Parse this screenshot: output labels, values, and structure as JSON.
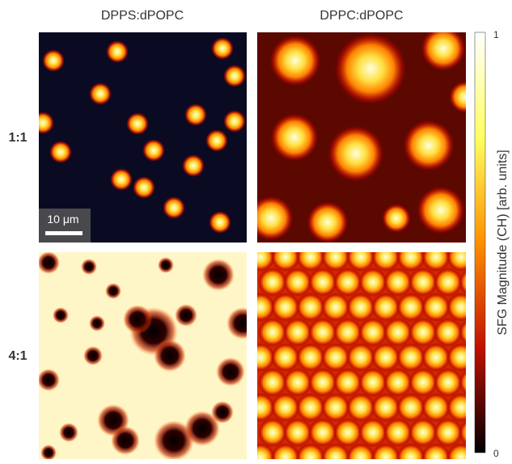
{
  "columns": [
    "DPPS:dPOPC",
    "DPPC:dPOPC"
  ],
  "rows": [
    "1:1",
    "4:1"
  ],
  "scale_bar": "10 μm",
  "colorbar": {
    "label": "SFG Magnitude (CH) [arb. units]",
    "max_label": "1",
    "min_label": "0"
  }
}
